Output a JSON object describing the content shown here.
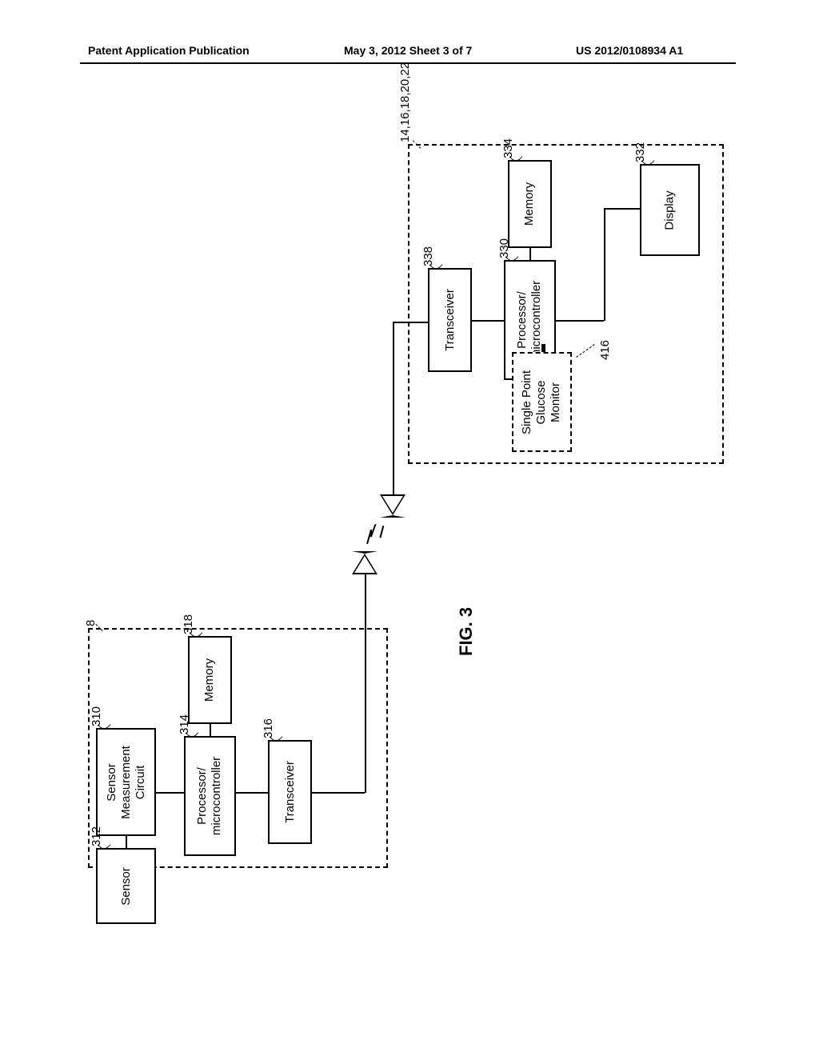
{
  "header": {
    "left": "Patent Application Publication",
    "center": "May 3, 2012  Sheet 3 of 7",
    "right": "US 2012/0108934 A1"
  },
  "figure": {
    "label": "FIG. 3",
    "left_unit": {
      "ref": "8",
      "blocks": {
        "sensor_meas": {
          "ref": "310",
          "label_l1": "Sensor",
          "label_l2": "Measurement",
          "label_l3": "Circuit"
        },
        "sensor": {
          "ref": "312",
          "label": "Sensor"
        },
        "processor": {
          "ref": "314",
          "label_l1": "Processor/",
          "label_l2": "microcontroller"
        },
        "memory": {
          "ref": "318",
          "label": "Memory"
        },
        "transceiver": {
          "ref": "316",
          "label": "Transceiver"
        }
      }
    },
    "right_unit": {
      "ref": "14,16,18,20,22",
      "blocks": {
        "transceiver": {
          "ref": "338",
          "label": "Transceiver"
        },
        "processor": {
          "ref": "330",
          "label_l1": "Processor/",
          "label_l2": "microcontroller"
        },
        "memory": {
          "ref": "334",
          "label": "Memory"
        },
        "display": {
          "ref": "332",
          "label": "Display"
        },
        "spgm": {
          "ref": "416",
          "label_l1": "Single Point",
          "label_l2": "Glucose",
          "label_l3": "Monitor"
        }
      }
    }
  }
}
